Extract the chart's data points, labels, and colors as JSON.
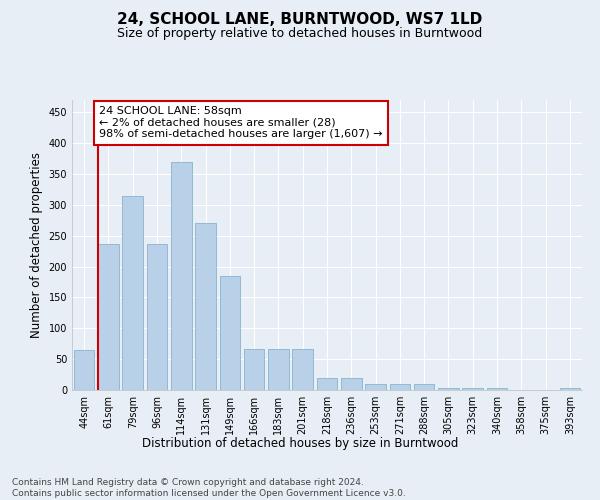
{
  "title": "24, SCHOOL LANE, BURNTWOOD, WS7 1LD",
  "subtitle": "Size of property relative to detached houses in Burntwood",
  "xlabel": "Distribution of detached houses by size in Burntwood",
  "ylabel": "Number of detached properties",
  "bar_labels": [
    "44sqm",
    "61sqm",
    "79sqm",
    "96sqm",
    "114sqm",
    "131sqm",
    "149sqm",
    "166sqm",
    "183sqm",
    "201sqm",
    "218sqm",
    "236sqm",
    "253sqm",
    "271sqm",
    "288sqm",
    "305sqm",
    "323sqm",
    "340sqm",
    "358sqm",
    "375sqm",
    "393sqm"
  ],
  "bar_values": [
    65,
    237,
    315,
    237,
    370,
    270,
    185,
    67,
    67,
    67,
    20,
    19,
    10,
    10,
    10,
    4,
    4,
    4,
    0,
    0,
    4
  ],
  "bar_color": "#b8d0e8",
  "bar_edge_color": "#7aaac8",
  "annotation_text": "24 SCHOOL LANE: 58sqm\n← 2% of detached houses are smaller (28)\n98% of semi-detached houses are larger (1,607) →",
  "vline_index": 1,
  "vline_color": "#cc0000",
  "annotation_box_edgecolor": "#cc0000",
  "ylim": [
    0,
    470
  ],
  "yticks": [
    0,
    50,
    100,
    150,
    200,
    250,
    300,
    350,
    400,
    450
  ],
  "footer_text": "Contains HM Land Registry data © Crown copyright and database right 2024.\nContains public sector information licensed under the Open Government Licence v3.0.",
  "background_color": "#e8eef5",
  "plot_background": "#e8eef5",
  "title_fontsize": 11,
  "subtitle_fontsize": 9,
  "xlabel_fontsize": 8.5,
  "ylabel_fontsize": 8.5,
  "tick_fontsize": 7,
  "annotation_fontsize": 8,
  "footer_fontsize": 6.5
}
